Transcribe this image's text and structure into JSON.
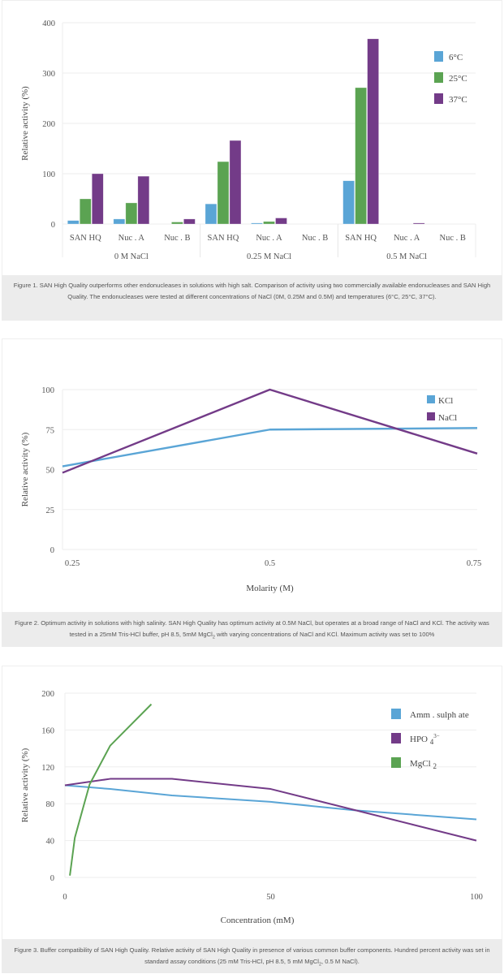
{
  "figures": [
    {
      "caption": "Figure 1. SAN High Quality outperforms other endonucleases in solutions with high salt. Comparison of activity using two commercially available endonucleases and SAN High Quality. The endonucleases were tested at different concentrations of NaCl (0M, 0.25M and 0.5M) and temperatures (6°C, 25°C, 37°C)."
    },
    {
      "caption_parts": [
        "Figure 2. Optimum activity in solutions with high salinity. SAN High Quality has optimum activity at 0.5M NaCl, but operates at a broad range of NaCl and KCl. The activity was tested in a 25mM Tris-HCl buffer, pH 8.5, 5mM MgCl",
        "2",
        " with varying concentrations of NaCl and KCl. Maximum activity was set to 100%"
      ]
    },
    {
      "caption_parts": [
        "Figure 3. Buffer compatibility of SAN High Quality. Relative activity of SAN High Quality in presence of various common buffer components. Hundred percent activity was set in standard assay conditions (25 mM Tris-HCl, pH 8.5, 5 mM MgCl",
        "2",
        ", 0.5 M NaCl)."
      ]
    }
  ],
  "chart_data": [
    {
      "type": "bar",
      "title": "",
      "xlabel": "",
      "ylabel": "Relative activity (%)",
      "ylim": [
        0,
        400
      ],
      "yticks": [
        0,
        100,
        200,
        300,
        400
      ],
      "grid": true,
      "legend": "top-right",
      "groups": [
        "0 M NaCl",
        "0.25 M NaCl",
        "0.5 M NaCl"
      ],
      "categories": [
        "SAN HQ",
        "Nuc . A",
        "Nuc . B",
        "SAN HQ",
        "Nuc . A",
        "Nuc . B",
        "SAN HQ",
        "Nuc . A",
        "Nuc . B"
      ],
      "series": [
        {
          "name": "6°C",
          "color": "#5aa5d6",
          "values": [
            7,
            10,
            0,
            40,
            2,
            0,
            86,
            0,
            0
          ]
        },
        {
          "name": "25°C",
          "color": "#5ba352",
          "values": [
            50,
            42,
            4,
            124,
            5,
            0,
            271,
            0,
            0
          ]
        },
        {
          "name": "37°C",
          "color": "#733b88",
          "values": [
            100,
            95,
            10,
            166,
            12,
            0,
            368,
            2,
            0
          ]
        }
      ]
    },
    {
      "type": "line",
      "title": "",
      "xlabel": "Molarity (M)",
      "ylabel": "Relative activity (%)",
      "xlim": [
        0.25,
        0.75
      ],
      "ylim": [
        0,
        100
      ],
      "xticks": [
        "0.25",
        "0.5",
        "0.75"
      ],
      "yticks": [
        0,
        25,
        50,
        75,
        100
      ],
      "grid": true,
      "legend": "top-right",
      "x": [
        0.25,
        0.5,
        0.75
      ],
      "series": [
        {
          "name": "KCl",
          "color": "#5aa5d6",
          "values": [
            52,
            75,
            76
          ]
        },
        {
          "name": "NaCl",
          "color": "#733b88",
          "values": [
            48,
            100,
            60
          ]
        }
      ]
    },
    {
      "type": "line",
      "title": "",
      "xlabel": "Concentration (mM)",
      "ylabel": "Relative activity (%)",
      "xlim": [
        0,
        100
      ],
      "ylim": [
        0,
        200
      ],
      "xticks": [
        "0",
        "50",
        "100"
      ],
      "yticks": [
        0,
        40,
        80,
        120,
        160,
        200
      ],
      "grid": true,
      "legend": "top-right",
      "series": [
        {
          "name": "Amm . sulph ate",
          "label_main": "Amm . sulph ate",
          "label_sub": "",
          "label_sup": "",
          "color": "#5aa5d6",
          "points": [
            [
              0,
              100
            ],
            [
              11,
              96
            ],
            [
              26,
              89
            ],
            [
              50,
              82
            ],
            [
              70,
              73
            ],
            [
              85,
              68
            ],
            [
              100,
              63
            ]
          ]
        },
        {
          "name": "HPO4 3−",
          "label_main": "HPO ",
          "label_sub": "4",
          "label_sup": "3−",
          "color": "#733b88",
          "points": [
            [
              0,
              100
            ],
            [
              11,
              107
            ],
            [
              26,
              107
            ],
            [
              50,
              96
            ],
            [
              100,
              40
            ]
          ]
        },
        {
          "name": "MgCl2",
          "label_main": "MgCl ",
          "label_sub": "2",
          "label_sup": "",
          "color": "#5ba352",
          "points": [
            [
              1.2,
              2
            ],
            [
              2.4,
              43
            ],
            [
              4.5,
              77
            ],
            [
              6,
              101
            ],
            [
              11,
              143
            ],
            [
              21,
              188
            ]
          ]
        }
      ]
    }
  ]
}
